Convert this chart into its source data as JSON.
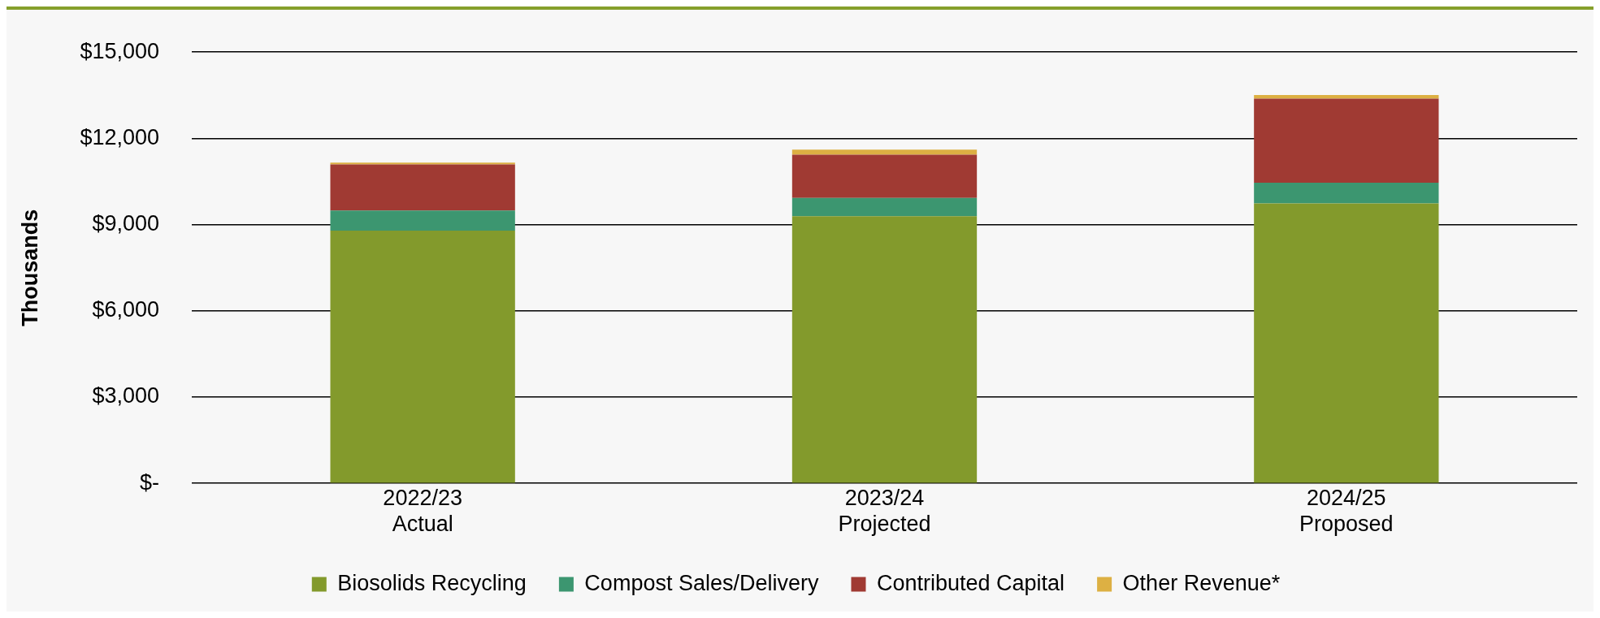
{
  "chart_data": {
    "type": "bar",
    "stacked": true,
    "ylabel": "Thousands",
    "categories": [
      "2022/23\nActual",
      "2023/24\nProjected",
      "2024/25\nProposed"
    ],
    "series": [
      {
        "name": "Biosolids Recycling",
        "color": "#839a2c",
        "values": [
          8790,
          9290,
          9740
        ]
      },
      {
        "name": "Compost Sales/Delivery",
        "color": "#3c9670",
        "values": [
          700,
          640,
          720
        ]
      },
      {
        "name": "Contributed Capital",
        "color": "#a03a33",
        "values": [
          1600,
          1500,
          2920
        ]
      },
      {
        "name": "Other Revenue*",
        "color": "#ddb043",
        "values": [
          70,
          180,
          130
        ]
      }
    ],
    "ylim": [
      0,
      15000
    ],
    "yticks": [
      {
        "value": 0,
        "label": "$-"
      },
      {
        "value": 3000,
        "label": "$3,000"
      },
      {
        "value": 6000,
        "label": "$6,000"
      },
      {
        "value": 9000,
        "label": "$9,000"
      },
      {
        "value": 12000,
        "label": "$12,000"
      },
      {
        "value": 15000,
        "label": "$15,000"
      }
    ],
    "grid": "y",
    "legend": "bottom"
  }
}
